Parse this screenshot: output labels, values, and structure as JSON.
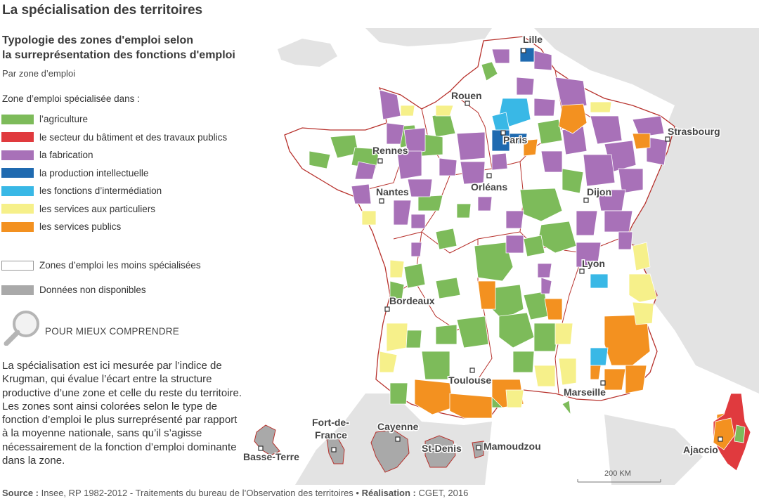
{
  "title": "La spécialisation des territoires",
  "subtitle_line1": "Typologie des zones d'emploi selon",
  "subtitle_line2": "la surreprésentation des fonctions d'emploi",
  "scope": "Par zone d’emploi",
  "legend": {
    "heading": "Zone d’emploi spécialisée dans :",
    "items": [
      {
        "label": "l’agriculture",
        "color": "#7dbb5a"
      },
      {
        "label": "le secteur du bâtiment et des travaux publics",
        "color": "#e03a3e"
      },
      {
        "label": "la fabrication",
        "color": "#a871b8"
      },
      {
        "label": "la production intellectuelle",
        "color": "#1f6ab0"
      },
      {
        "label": "les fonctions d’intermédiation",
        "color": "#39b8e6"
      },
      {
        "label": "les services aux particuliers",
        "color": "#f6f08a"
      },
      {
        "label": "les services publics",
        "color": "#f39120"
      }
    ],
    "least_specialized": "Zones d’emploi les moins spécialisées",
    "no_data": "Données non disponibles"
  },
  "help": {
    "label": "POUR MIEUX COMPRENDRE",
    "text": "La spécialisation est ici mesurée par l’indice de Krugman, qui évalue l’écart entre la structure productive d’une zone et celle du reste du territoire. Les zones sont ainsi colorées selon le type de fonction d’emploi le plus surreprésenté par rapport à la moyenne nationale, sans qu’il s’agisse nécessairement de la fonction d’emploi dominante dans la zone."
  },
  "cities": {
    "lille": "Lille",
    "rouen": "Rouen",
    "paris": "Paris",
    "strasbourg": "Strasbourg",
    "rennes": "Rennes",
    "nantes": "Nantes",
    "orleans": "Orléans",
    "dijon": "Dijon",
    "lyon": "Lyon",
    "bordeaux": "Bordeaux",
    "toulouse": "Toulouse",
    "marseille": "Marseille",
    "ajaccio": "Ajaccio"
  },
  "overseas": {
    "basse_terre": "Basse-Terre",
    "fort_de_france_1": "Fort-de-",
    "fort_de_france_2": "France",
    "cayenne": "Cayenne",
    "st_denis": "St-Denis",
    "mamoudzou": "Mamoudzou"
  },
  "scale": "200 KM",
  "source": {
    "source_label": "Source :",
    "source_text": " Insee, RP 1982-2012 - Traitements du bureau de l’Observation des territoires • ",
    "credit_label": "Réalisation :",
    "credit_text": " CGET, 2016"
  }
}
